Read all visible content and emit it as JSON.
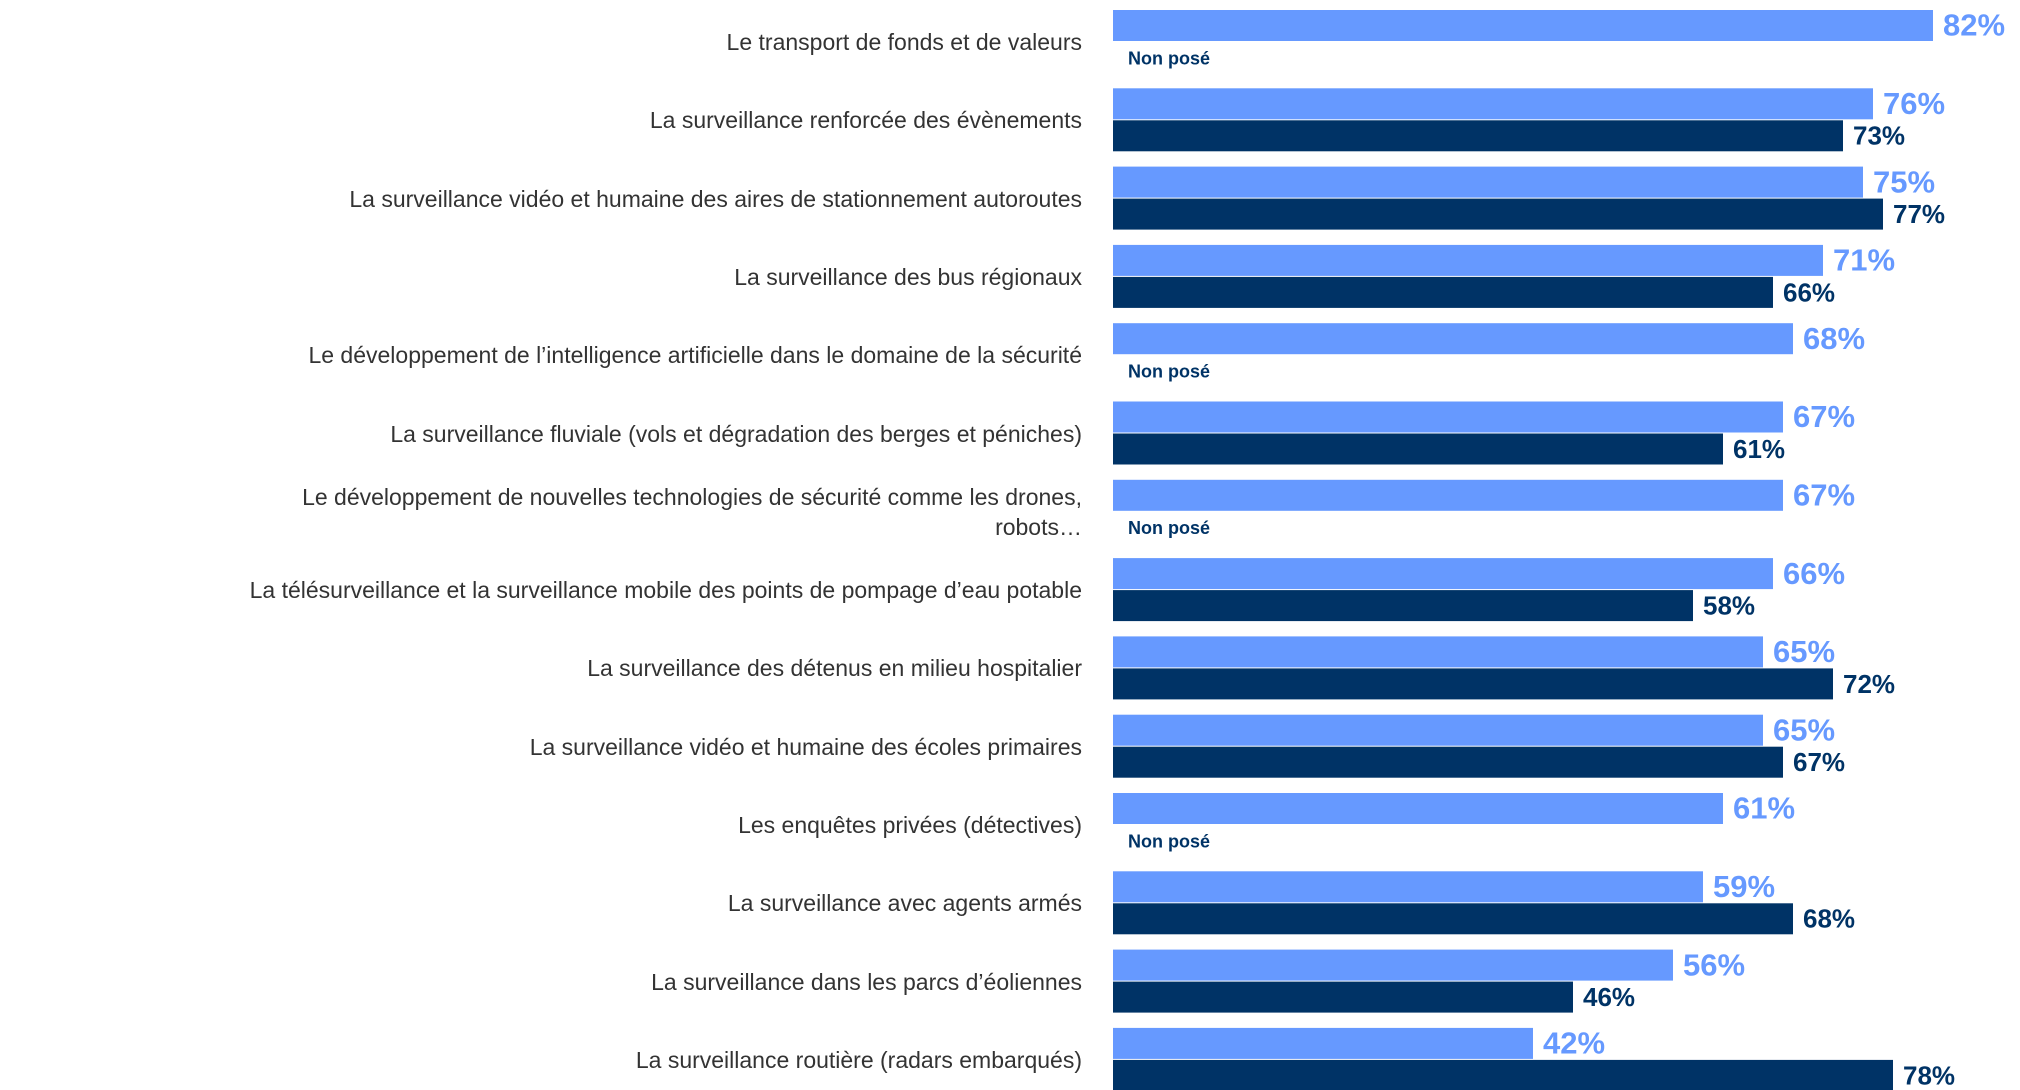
{
  "chart_data": {
    "type": "grouped-barh",
    "categories": [
      "Le transport de fonds et de valeurs",
      "La surveillance renforcée des évènements",
      "La surveillance vidéo et humaine des aires de stationnement autoroutes",
      "La surveillance des bus régionaux",
      "Le développement de l’intelligence artificielle dans le domaine de la sécurité",
      "La surveillance fluviale (vols et dégradation des berges et péniches)",
      "Le développement de nouvelles technologies de sécurité comme les drones,\nrobots…",
      "La télésurveillance et la surveillance mobile des points de pompage d’eau potable",
      "La surveillance des détenus en milieu hospitalier",
      "La surveillance vidéo et humaine des écoles primaires",
      "Les enquêtes privées (détectives)",
      "La surveillance avec agents armés",
      "La surveillance dans les parcs d’éoliennes",
      "La surveillance routière (radars embarqués)"
    ],
    "series": [
      {
        "color": "#6699ff",
        "values": [
          82,
          76,
          75,
          71,
          68,
          67,
          67,
          66,
          65,
          65,
          61,
          59,
          56,
          42
        ],
        "value_labels": [
          "82%",
          "76%",
          "75%",
          "71%",
          "68%",
          "67%",
          "67%",
          "66%",
          "65%",
          "65%",
          "61%",
          "59%",
          "56%",
          "42%"
        ]
      },
      {
        "color": "#003366",
        "values": [
          null,
          73,
          77,
          66,
          null,
          61,
          null,
          58,
          72,
          67,
          null,
          68,
          46,
          78
        ],
        "value_labels": [
          null,
          "73%",
          "77%",
          "66%",
          null,
          "61%",
          null,
          "58%",
          "72%",
          "67%",
          null,
          "68%",
          "46%",
          "78%"
        ]
      }
    ],
    "null_label": "Non posé",
    "xlim": [
      0,
      90
    ]
  }
}
